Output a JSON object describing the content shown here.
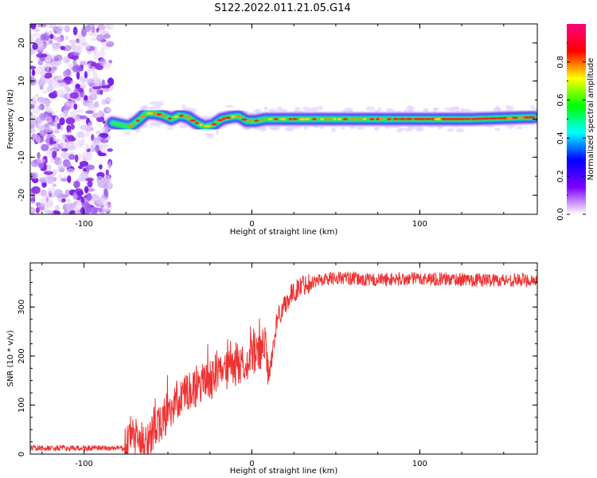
{
  "title": "S122.2022.011.21.05.G14",
  "chart_data": [
    {
      "type": "heatmap",
      "xlabel": "Height of straight line (km)",
      "ylabel": "Frequency (Hz)",
      "xlim": [
        -132,
        170
      ],
      "ylim": [
        -25,
        25
      ],
      "x_ticks": [
        -100,
        0,
        100
      ],
      "y_ticks": [
        -20,
        -10,
        0,
        10,
        20
      ],
      "colorbar": {
        "label": "Normalized spectral amplitude",
        "range": [
          0,
          1
        ],
        "ticks": [
          "0.0",
          "0.2",
          "0.4",
          "0.6",
          "0.8"
        ],
        "colors": [
          "#ffffff",
          "#7f00ff",
          "#0000ff",
          "#00ffff",
          "#00ff00",
          "#ffff00",
          "#ff0000",
          "#ff0080"
        ]
      },
      "ridge": {
        "x": [
          -83,
          -78,
          -73,
          -68,
          -63,
          -58,
          -53,
          -48,
          -43,
          -38,
          -33,
          -28,
          -23,
          -18,
          -13,
          -8,
          -3,
          2,
          8,
          15,
          30,
          50,
          70,
          100,
          130,
          168
        ],
        "y": [
          -1,
          -1.5,
          -2,
          -0.5,
          1.5,
          1.5,
          1,
          0,
          1,
          0.5,
          -1,
          -2,
          -1.5,
          0,
          0.5,
          0.8,
          -0.5,
          -0.5,
          0,
          0,
          0,
          0,
          0,
          0,
          0,
          0.5
        ]
      },
      "noise_region": {
        "x": [
          -132,
          -84
        ],
        "y": [
          -25,
          25
        ]
      }
    },
    {
      "type": "line",
      "xlabel": "Height of straight line (km)",
      "ylabel": "SNR (10 * v/v)",
      "xlim": [
        -132,
        170
      ],
      "ylim": [
        0,
        390
      ],
      "x_ticks": [
        -100,
        0,
        100
      ],
      "y_ticks": [
        0,
        100,
        200,
        300
      ],
      "color": "#ee3333",
      "trend": {
        "x": [
          -132,
          -75,
          -72,
          -70,
          -65,
          -60,
          -55,
          -50,
          -45,
          -40,
          -35,
          -30,
          -25,
          -20,
          -15,
          -10,
          -5,
          0,
          5,
          8,
          10,
          15,
          20,
          25,
          30,
          40,
          50,
          70,
          100,
          140,
          170
        ],
        "y": [
          12,
          12,
          45,
          35,
          25,
          40,
          60,
          85,
          110,
          120,
          130,
          140,
          150,
          160,
          170,
          175,
          185,
          195,
          210,
          220,
          150,
          275,
          310,
          330,
          345,
          355,
          360,
          355,
          358,
          355,
          355
        ]
      }
    }
  ]
}
